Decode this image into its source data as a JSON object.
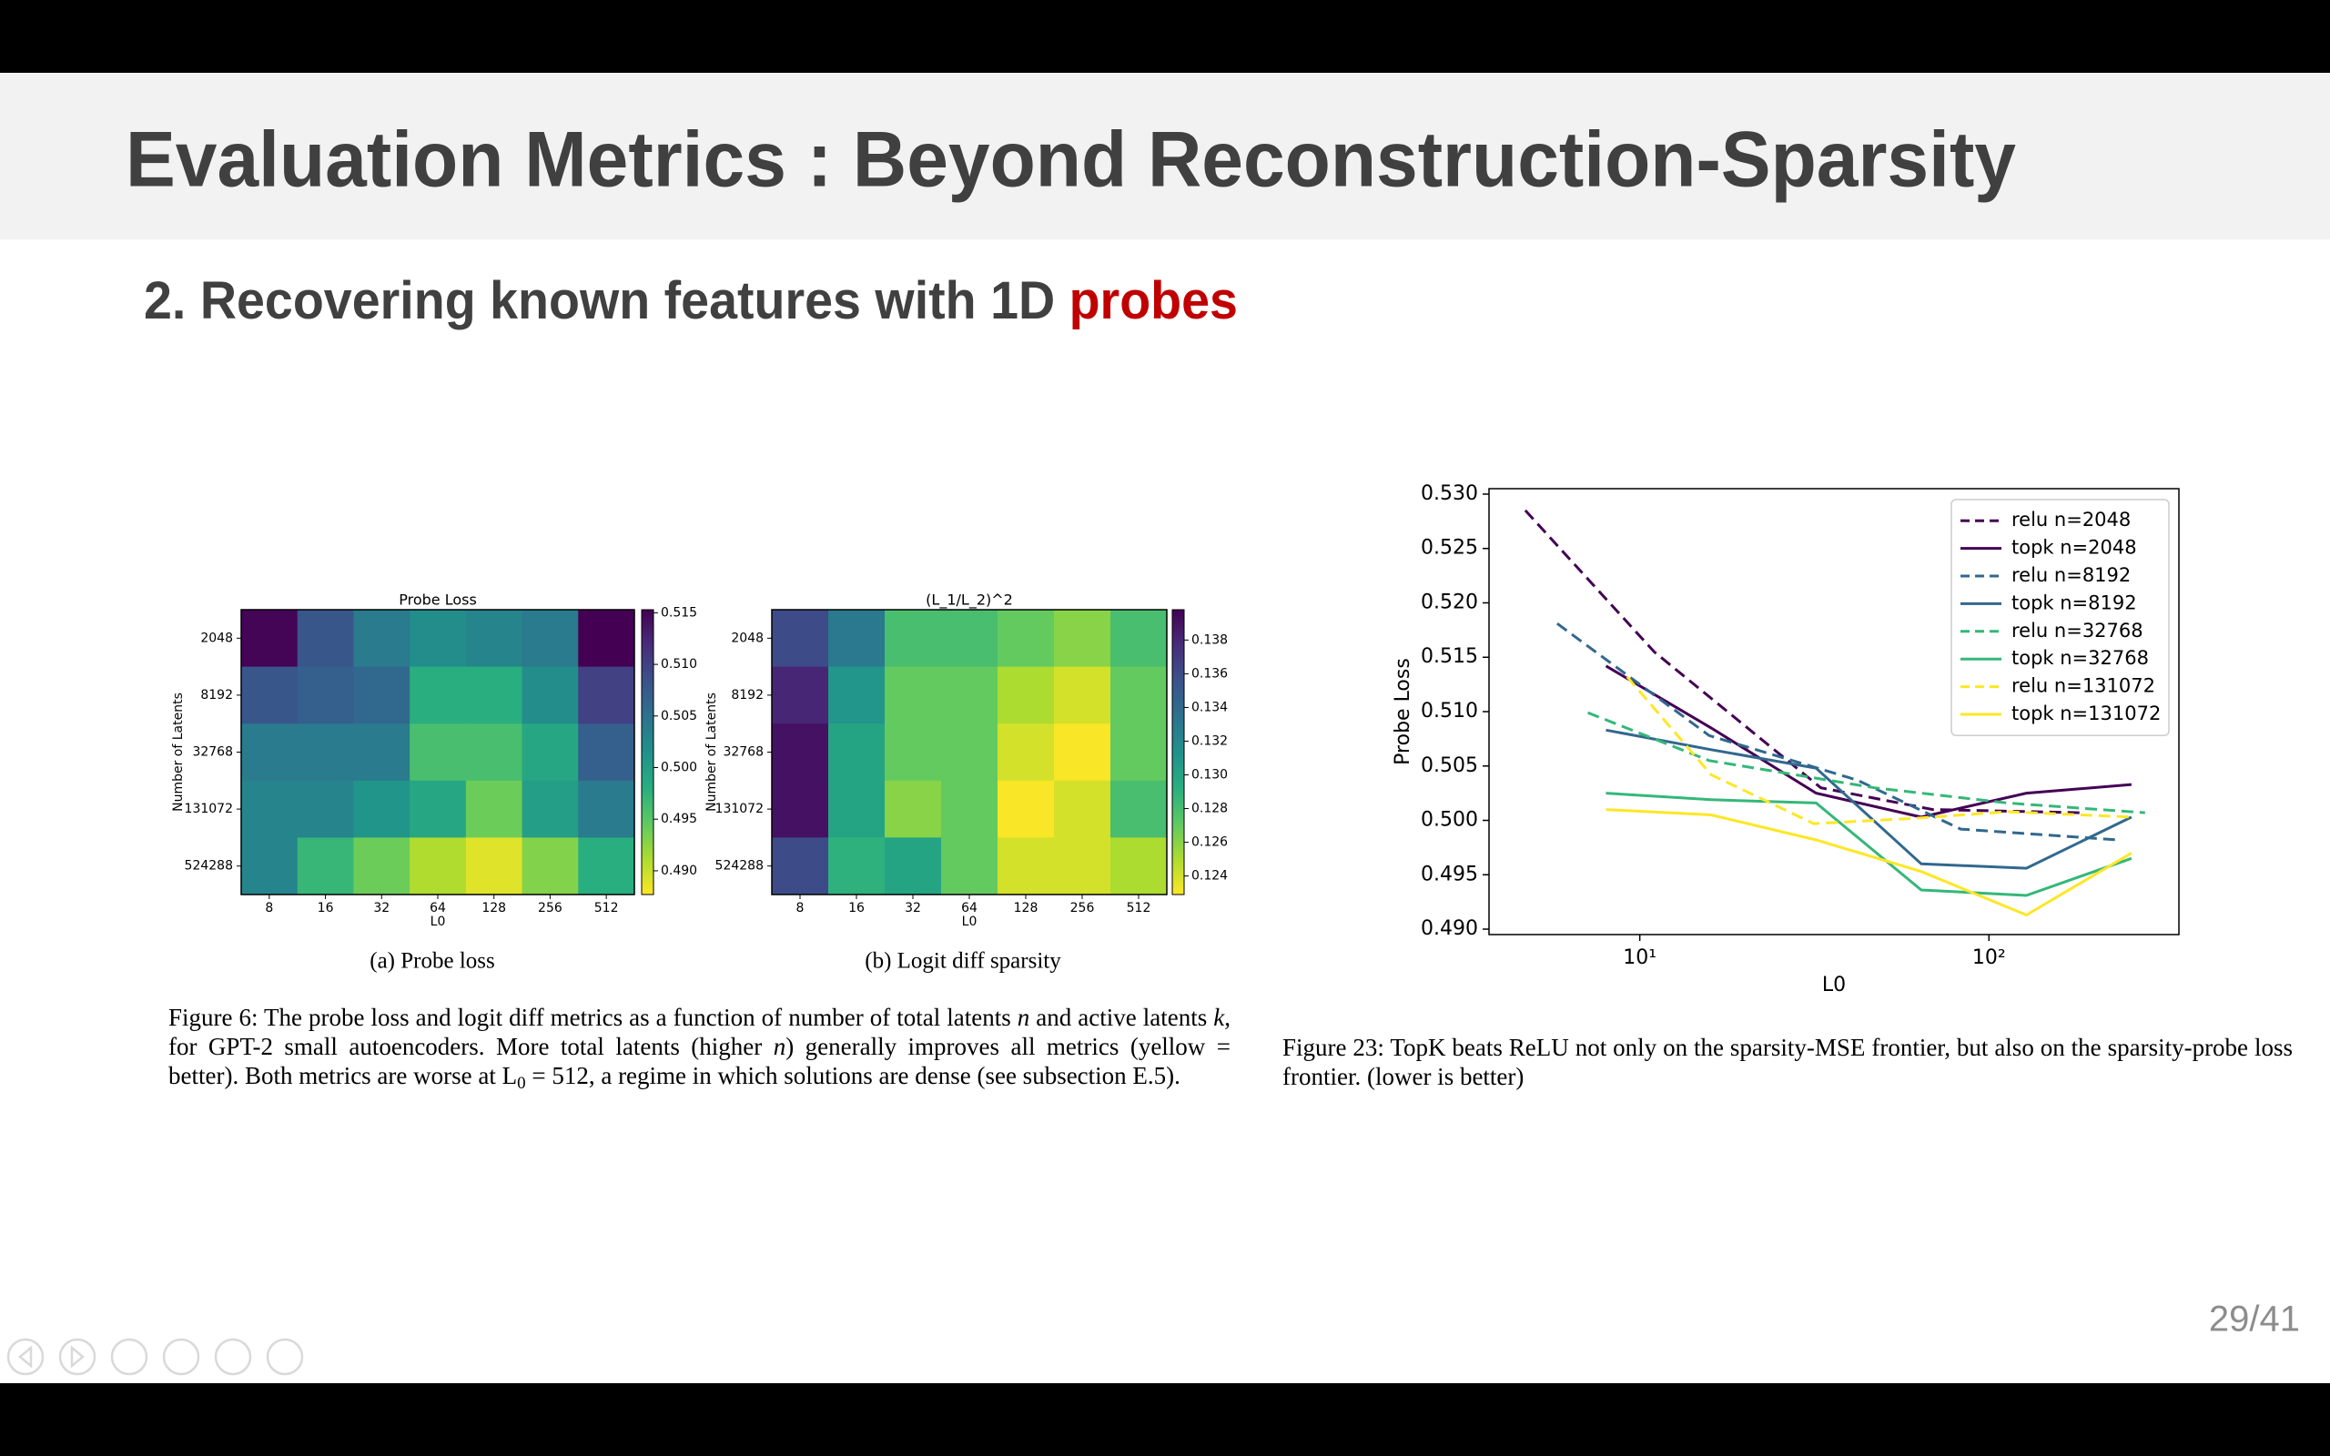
{
  "slide": {
    "title": "Evaluation Metrics : Beyond Reconstruction-Sparsity",
    "subtitle": [
      "2. Recovering known features with 1D ",
      "probes"
    ],
    "page_number": "29/41"
  },
  "chart_data": [
    {
      "type": "heatmap",
      "title": "Probe Loss",
      "xlabel": "L0",
      "ylabel": "Number of Latents",
      "categories": [
        "8",
        "16",
        "32",
        "64",
        "128",
        "256",
        "512"
      ],
      "rows": [
        "2048",
        "8192",
        "32768",
        "131072",
        "524288"
      ],
      "values": [
        [
          0.515,
          0.508,
          0.504,
          0.502,
          0.503,
          0.504,
          0.516
        ],
        [
          0.508,
          0.507,
          0.506,
          0.498,
          0.498,
          0.502,
          0.51
        ],
        [
          0.504,
          0.504,
          0.504,
          0.496,
          0.496,
          0.499,
          0.507
        ],
        [
          0.503,
          0.503,
          0.501,
          0.499,
          0.494,
          0.5,
          0.504
        ],
        [
          0.503,
          0.497,
          0.494,
          0.491,
          0.489,
          0.493,
          0.498
        ]
      ],
      "colormap": "viridis_r",
      "clim": [
        0.4877,
        0.5153
      ],
      "cticks": [
        {
          "value": 0.49,
          "label": "0.490"
        },
        0.495,
        {
          "value": 0.5,
          "label": "0.500"
        },
        0.505,
        {
          "value": 0.51,
          "label": "0.510"
        },
        0.515
      ]
    },
    {
      "type": "heatmap",
      "title": "(L_1/L_2)^2",
      "xlabel": "L0",
      "ylabel": "Number of Latents",
      "categories": [
        "8",
        "16",
        "32",
        "64",
        "128",
        "256",
        "512"
      ],
      "rows": [
        "2048",
        "8192",
        "32768",
        "131072",
        "524288"
      ],
      "values": [
        [
          0.136,
          0.133,
          0.128,
          0.128,
          0.127,
          0.126,
          0.128
        ],
        [
          0.138,
          0.131,
          0.127,
          0.127,
          0.125,
          0.124,
          0.127
        ],
        [
          0.139,
          0.13,
          0.127,
          0.127,
          0.124,
          0.123,
          0.127
        ],
        [
          0.139,
          0.13,
          0.126,
          0.127,
          0.123,
          0.124,
          0.128
        ],
        [
          0.136,
          0.129,
          0.13,
          0.127,
          0.124,
          0.124,
          0.125
        ]
      ],
      "colormap": "viridis_r",
      "clim": [
        0.1229,
        0.1398
      ],
      "cticks": [
        0.124,
        0.126,
        0.128,
        {
          "value": 0.13,
          "label": "0.130"
        },
        0.132,
        0.134,
        0.136,
        0.138
      ]
    },
    {
      "type": "line",
      "xlabel": "L0",
      "ylabel": "Probe Loss",
      "xscale": "log",
      "legend": "upper right",
      "xlim": [
        3.7,
        350
      ],
      "ylim": [
        0.4895,
        0.5305
      ],
      "xticks": [
        {
          "value": 10,
          "label": "10¹"
        },
        {
          "value": 100,
          "label": "10²"
        }
      ],
      "yticks": [
        {
          "value": 0.49,
          "label": "0.490"
        },
        0.495,
        {
          "value": 0.5,
          "label": "0.500"
        },
        0.505,
        {
          "value": 0.51,
          "label": "0.510"
        },
        0.515,
        {
          "value": 0.52,
          "label": "0.520"
        },
        0.525,
        {
          "value": 0.53,
          "label": "0.530"
        }
      ],
      "series": [
        {
          "name": "relu n=2048",
          "color": "#440154",
          "dashed": true,
          "x": [
            4.7,
            11,
            33,
            69,
            183
          ],
          "values": [
            0.5285,
            0.5155,
            0.503,
            0.501,
            0.5007
          ]
        },
        {
          "name": "topk n=2048",
          "color": "#440154",
          "dashed": false,
          "x": [
            8,
            16,
            32,
            64,
            128,
            256
          ],
          "values": [
            0.5142,
            0.5085,
            0.5025,
            0.5003,
            0.5025,
            0.5033
          ]
        },
        {
          "name": "relu n=8192",
          "color": "#31688e",
          "dashed": true,
          "x": [
            5.8,
            15.8,
            42,
            83,
            235
          ],
          "values": [
            0.5181,
            0.5078,
            0.5037,
            0.4992,
            0.4982
          ]
        },
        {
          "name": "topk n=8192",
          "color": "#31688e",
          "dashed": false,
          "x": [
            8,
            16,
            32,
            64,
            128,
            256
          ],
          "values": [
            0.5083,
            0.5065,
            0.5048,
            0.496,
            0.4956,
            0.5003
          ]
        },
        {
          "name": "relu n=32768",
          "color": "#35b779",
          "dashed": true,
          "x": [
            7.1,
            15.8,
            47,
            113,
            280
          ],
          "values": [
            0.5099,
            0.5055,
            0.503,
            0.5016,
            0.5007
          ]
        },
        {
          "name": "topk n=32768",
          "color": "#35b779",
          "dashed": false,
          "x": [
            8,
            16,
            32,
            64,
            128,
            256
          ],
          "values": [
            0.5025,
            0.5019,
            0.5016,
            0.4936,
            0.4931,
            0.4965
          ]
        },
        {
          "name": "relu n=131072",
          "color": "#fde725",
          "dashed": true,
          "x": [
            9.2,
            16,
            31.5,
            62,
            113,
            258
          ],
          "values": [
            0.5132,
            0.5042,
            0.4997,
            0.5002,
            0.5008,
            0.5003
          ]
        },
        {
          "name": "topk n=131072",
          "color": "#fde725",
          "dashed": false,
          "x": [
            8,
            16,
            32,
            64,
            128,
            256
          ],
          "values": [
            0.501,
            0.5005,
            0.4982,
            0.4953,
            0.4913,
            0.497
          ]
        }
      ]
    }
  ],
  "captions": {
    "a": "(a) Probe loss",
    "b": "(b) Logit diff sparsity",
    "figure6": [
      {
        "text": "Figure 6: The probe loss and logit diff metrics as a function of number of total latents "
      },
      {
        "text": "n",
        "style": "italic"
      },
      {
        "text": " and active latents "
      },
      {
        "text": "k",
        "style": "italic"
      },
      {
        "text": ", for GPT-2 small autoencoders. More total latents (higher "
      },
      {
        "text": "n",
        "style": "italic"
      },
      {
        "text": ") generally improves all metrics (yellow = better). Both metrics are worse at L"
      },
      {
        "text": "0",
        "style": "sub"
      },
      {
        "text": " = 512, a regime in which solutions are dense (see subsection E.5)."
      }
    ],
    "figure23": "Figure 23: TopK beats ReLU not only on the sparsity-MSE frontier, but also on the sparsity-probe loss frontier. (lower is better)"
  }
}
